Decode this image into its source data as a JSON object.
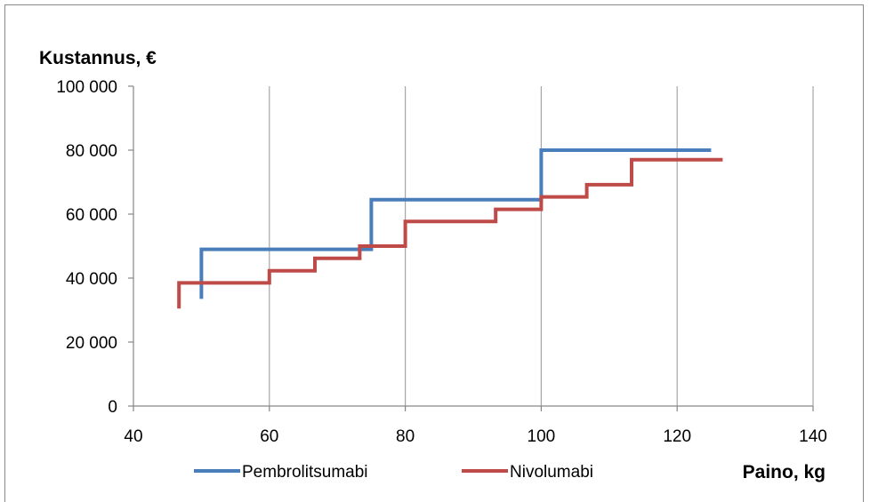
{
  "chart_data": {
    "type": "line",
    "step": true,
    "ylabel": "Kustannus, €",
    "xlabel": "Paino, kg",
    "xlim": [
      40,
      140
    ],
    "ylim": [
      0,
      100000
    ],
    "x_ticks": [
      40,
      60,
      80,
      100,
      120,
      140
    ],
    "y_ticks": [
      0,
      20000,
      40000,
      60000,
      80000,
      100000
    ],
    "x_tick_labels": [
      "40",
      "60",
      "80",
      "100",
      "120",
      "140"
    ],
    "y_tick_labels": [
      "0",
      "20 000",
      "40 000",
      "60 000",
      "80 000",
      "100 000"
    ],
    "grid": {
      "vertical": true,
      "horizontal": false
    },
    "legend": "bottom",
    "series": [
      {
        "name": "Pembrolitsumabi",
        "color": "#4a7ebb",
        "points": [
          [
            50,
            33500
          ],
          [
            50,
            49000
          ],
          [
            75,
            49000
          ],
          [
            75,
            64500
          ],
          [
            100,
            64500
          ],
          [
            100,
            80000
          ],
          [
            125,
            80000
          ]
        ]
      },
      {
        "name": "Nivolumabi",
        "color": "#be4b48",
        "points": [
          [
            46.7,
            30500
          ],
          [
            46.7,
            38500
          ],
          [
            60,
            38500
          ],
          [
            60,
            42300
          ],
          [
            66.7,
            42300
          ],
          [
            66.7,
            46200
          ],
          [
            73.3,
            46200
          ],
          [
            73.3,
            50000
          ],
          [
            80,
            50000
          ],
          [
            80,
            57700
          ],
          [
            93.3,
            57700
          ],
          [
            93.3,
            61500
          ],
          [
            100,
            61500
          ],
          [
            100,
            65400
          ],
          [
            106.7,
            65400
          ],
          [
            106.7,
            69200
          ],
          [
            113.3,
            69200
          ],
          [
            113.3,
            77000
          ],
          [
            126.7,
            77000
          ]
        ]
      }
    ]
  }
}
